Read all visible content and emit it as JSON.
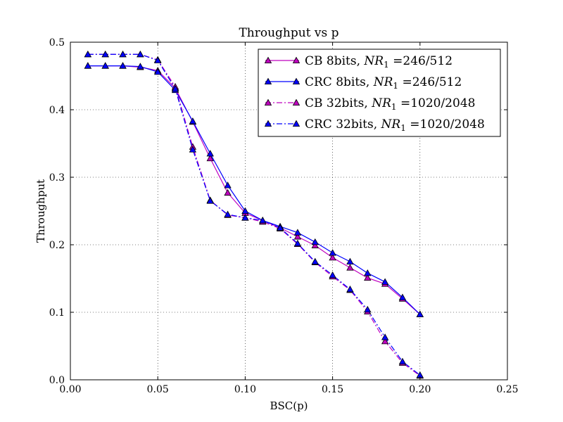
{
  "chart_data": {
    "type": "line",
    "title": "Throughput vs p",
    "xlabel": "BSC(p)",
    "ylabel": "Throughput",
    "xlim": [
      0.0,
      0.25
    ],
    "ylim": [
      0.0,
      0.5
    ],
    "x_ticks": [
      "0.00",
      "0.05",
      "0.10",
      "0.15",
      "0.20",
      "0.25"
    ],
    "y_ticks": [
      "0.0",
      "0.1",
      "0.2",
      "0.3",
      "0.4",
      "0.5"
    ],
    "grid": true,
    "legend_position": "top-right",
    "series": [
      {
        "name": "CB 8bits, NR1 =246/512",
        "legend_prefix": "CB 8bits, ",
        "legend_math": "NR",
        "legend_sub": "1",
        "legend_suffix": " =246/512",
        "color": "#bf00bf",
        "style": "solid",
        "x": [
          0.01,
          0.02,
          0.03,
          0.04,
          0.05,
          0.06,
          0.07,
          0.08,
          0.09,
          0.1,
          0.11,
          0.12,
          0.13,
          0.14,
          0.15,
          0.16,
          0.17,
          0.18,
          0.19,
          0.2
        ],
        "y": [
          0.465,
          0.465,
          0.465,
          0.463,
          0.458,
          0.432,
          0.382,
          0.328,
          0.277,
          0.247,
          0.236,
          0.225,
          0.212,
          0.199,
          0.181,
          0.166,
          0.151,
          0.142,
          0.12,
          0.097
        ]
      },
      {
        "name": "CRC 8bits, NR1 =246/512",
        "legend_prefix": "CRC 8bits, ",
        "legend_math": "NR",
        "legend_sub": "1",
        "legend_suffix": " =246/512",
        "color": "#0000ff",
        "style": "solid",
        "x": [
          0.01,
          0.02,
          0.03,
          0.04,
          0.05,
          0.06,
          0.07,
          0.08,
          0.09,
          0.1,
          0.11,
          0.12,
          0.13,
          0.14,
          0.15,
          0.16,
          0.17,
          0.18,
          0.19,
          0.2
        ],
        "y": [
          0.465,
          0.465,
          0.465,
          0.464,
          0.456,
          0.429,
          0.383,
          0.335,
          0.288,
          0.25,
          0.236,
          0.227,
          0.218,
          0.204,
          0.188,
          0.175,
          0.158,
          0.145,
          0.122,
          0.097
        ]
      },
      {
        "name": "CB 32bits, NR1 =1020/2048",
        "legend_prefix": "CB 32bits, ",
        "legend_math": "NR",
        "legend_sub": "1",
        "legend_suffix": " =1020/2048",
        "color": "#bf00bf",
        "style": "dashdot",
        "x": [
          0.01,
          0.02,
          0.03,
          0.04,
          0.05,
          0.06,
          0.07,
          0.08,
          0.09,
          0.1,
          0.11,
          0.12,
          0.13,
          0.14,
          0.15,
          0.16,
          0.17,
          0.18,
          0.19,
          0.2
        ],
        "y": [
          0.482,
          0.482,
          0.482,
          0.482,
          0.474,
          0.434,
          0.345,
          0.266,
          0.244,
          0.24,
          0.234,
          0.224,
          0.201,
          0.174,
          0.153,
          0.133,
          0.101,
          0.057,
          0.025,
          0.006
        ]
      },
      {
        "name": "CRC 32bits, NR1 =1020/2048",
        "legend_prefix": "CRC 32bits, ",
        "legend_math": "NR",
        "legend_sub": "1",
        "legend_suffix": " =1020/2048",
        "color": "#0000ff",
        "style": "dashdot",
        "x": [
          0.01,
          0.02,
          0.03,
          0.04,
          0.05,
          0.06,
          0.07,
          0.08,
          0.09,
          0.1,
          0.11,
          0.12,
          0.13,
          0.14,
          0.15,
          0.16,
          0.17,
          0.18,
          0.19,
          0.2
        ],
        "y": [
          0.482,
          0.482,
          0.482,
          0.482,
          0.473,
          0.431,
          0.341,
          0.265,
          0.245,
          0.24,
          0.236,
          0.225,
          0.202,
          0.175,
          0.155,
          0.134,
          0.104,
          0.063,
          0.027,
          0.007
        ]
      }
    ]
  }
}
